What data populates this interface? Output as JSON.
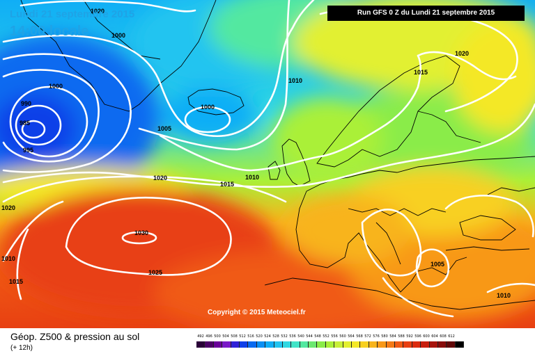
{
  "header": {
    "date": "Lundi 21 septembre 2015",
    "time": "14:00 locale",
    "run": "Run GFS 0 Z du Lundi 21 septembre 2015"
  },
  "copyright": "Copyright © 2015 Meteociel.fr",
  "footer": {
    "title": "Géop. Z500 & pression au sol",
    "subtitle": "(+ 12h)"
  },
  "legend": {
    "values": [
      "492",
      "496",
      "500",
      "504",
      "508",
      "512",
      "516",
      "520",
      "524",
      "528",
      "532",
      "536",
      "540",
      "544",
      "548",
      "552",
      "556",
      "560",
      "564",
      "568",
      "572",
      "576",
      "580",
      "584",
      "588",
      "592",
      "596",
      "600",
      "604",
      "608",
      "612"
    ],
    "colors": [
      "#2a0038",
      "#4b0066",
      "#6a009a",
      "#7a18c8",
      "#3020d8",
      "#1040e8",
      "#0a6af0",
      "#0a90f4",
      "#10aef6",
      "#22c4f0",
      "#30d8e2",
      "#40e4c8",
      "#52e8a0",
      "#6ce870",
      "#8aec48",
      "#aaf038",
      "#c8f038",
      "#e2f030",
      "#f4e828",
      "#f8d020",
      "#f8b41c",
      "#f89818",
      "#f47a16",
      "#f05a14",
      "#e84012",
      "#dc2c10",
      "#c81e0e",
      "#a8140c",
      "#880c0a",
      "#600808",
      "#000000"
    ]
  },
  "isobars": [
    "1020",
    "1000",
    "1000",
    "990",
    "985",
    "995",
    "1005",
    "1000",
    "1010",
    "1015",
    "1020",
    "1010",
    "1020",
    "1015",
    "1030",
    "1025",
    "1010",
    "1015",
    "1020",
    "1005",
    "1010"
  ],
  "colors": {
    "isobar": "#ffffff",
    "coast": "#000000",
    "header_text": "#1fa3e6"
  }
}
